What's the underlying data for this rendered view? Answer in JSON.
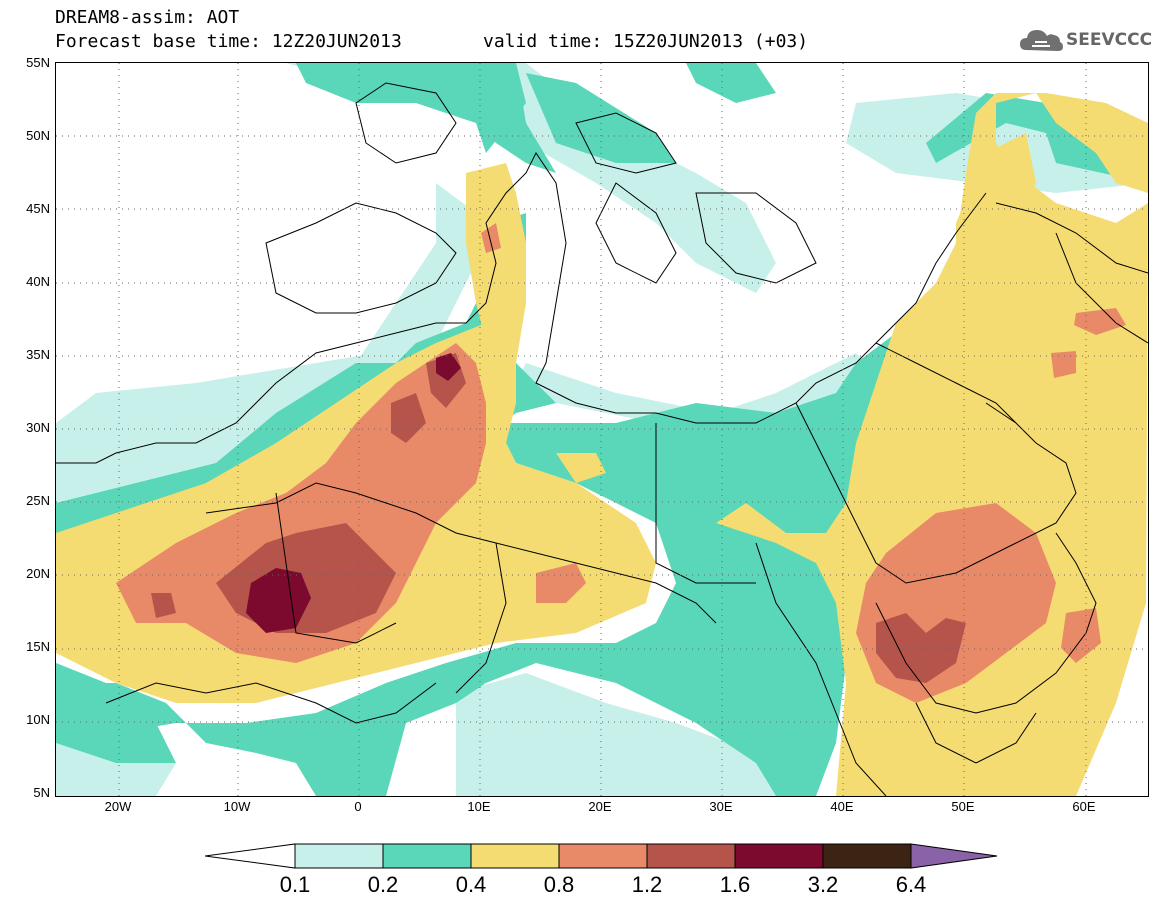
{
  "header": {
    "title": "DREAM8-assim: AOT",
    "base_time": "Forecast base time: 12Z20JUN2013",
    "valid_time": "valid time: 15Z20JUN2013 (+03)"
  },
  "logo": {
    "text": "SEEVCCC",
    "icon": "cloud-icon"
  },
  "map": {
    "latitude_labels": [
      "55N",
      "50N",
      "45N",
      "40N",
      "35N",
      "30N",
      "25N",
      "20N",
      "15N",
      "10N",
      "5N"
    ],
    "longitude_labels": [
      "20W",
      "10W",
      "0",
      "10E",
      "20E",
      "30E",
      "40E",
      "50E",
      "60E"
    ],
    "colors": {
      "0.1-0.2": "#c8f0ea",
      "0.2-0.4": "#5ad6b8",
      "0.4-0.8": "#f5dc72",
      "0.8-1.2": "#e88a68",
      "1.2-1.6": "#b4544a",
      "1.6-3.2": "#7c0a2e",
      "3.2-6.4": "#3c2414",
      ">6.4": "#8a62a8"
    }
  },
  "legend": {
    "labels": [
      "0.1",
      "0.2",
      "0.4",
      "0.8",
      "1.2",
      "1.6",
      "3.2",
      "6.4"
    ],
    "colors": [
      "#ffffff",
      "#c8f0ea",
      "#5ad6b8",
      "#f5dc72",
      "#e88a68",
      "#b4544a",
      "#7c0a2e",
      "#3c2414",
      "#8a62a8"
    ]
  }
}
